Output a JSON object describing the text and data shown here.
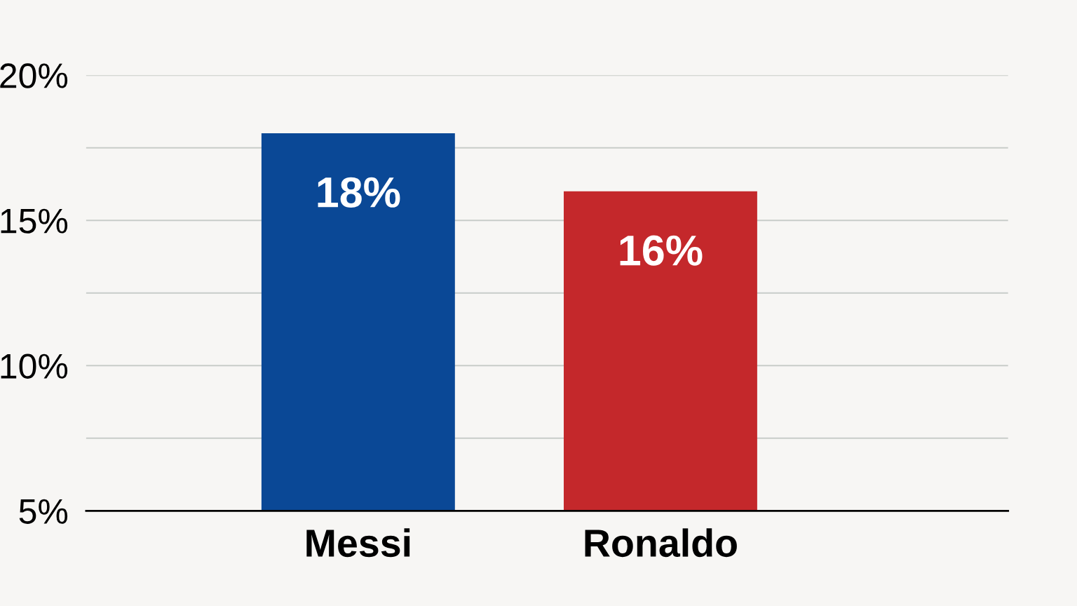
{
  "chart_data": {
    "type": "bar",
    "categories": [
      "Messi",
      "Ronaldo"
    ],
    "values": [
      18,
      16
    ],
    "colors": [
      "#0a4896",
      "#c4282b"
    ],
    "ylim": [
      5,
      20
    ],
    "yticks": [
      {
        "value": 5,
        "label": "5%"
      },
      {
        "value": 7.5,
        "label": null
      },
      {
        "value": 10,
        "label": "10%"
      },
      {
        "value": 12.5,
        "label": null
      },
      {
        "value": 15,
        "label": "15%"
      },
      {
        "value": 17.5,
        "label": null
      },
      {
        "value": 20,
        "label": "20%"
      }
    ],
    "value_labels": [
      "18%",
      "16%"
    ],
    "grid": "y"
  }
}
